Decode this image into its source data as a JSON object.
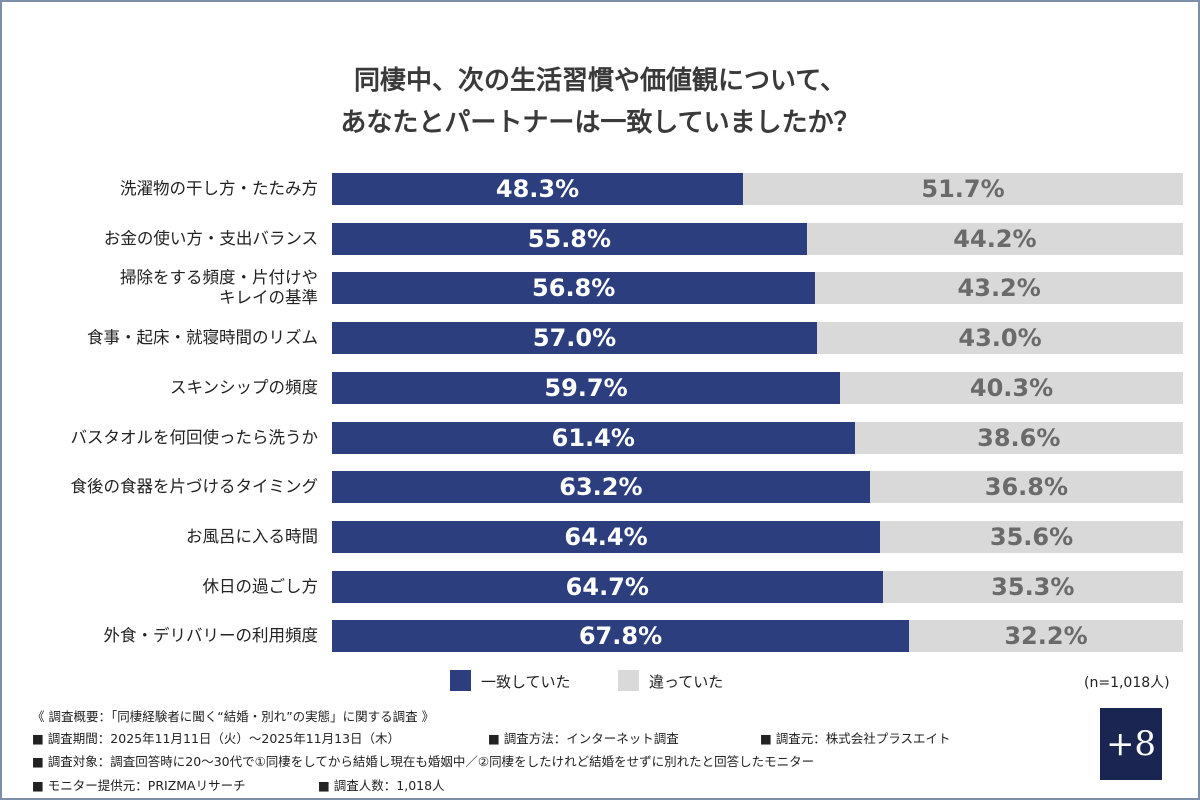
{
  "chart_data": {
    "type": "stacked-bar-horizontal",
    "title": [
      "同棲中、次の生活習慣や価値観について、",
      "あなたとパートナーは一致していましたか？"
    ],
    "categories": [
      "洗濯物の干し方・たたみ方",
      "お金の使い方・支出バランス",
      "掃除をする頻度・片付けや\nキレイの基準",
      "食事・起床・就寝時間のリズム",
      "スキンシップの頻度",
      "バスタオルを何回使ったら洗うか",
      "食後の食器を片づけるタイミング",
      "お風呂に入る時間",
      "休日の過ごし方",
      "外食・デリバリーの利用頻度"
    ],
    "xlim": [
      0,
      100
    ],
    "series": [
      {
        "name": "一致していた",
        "color": "#2c3e7e",
        "values": [
          48.3,
          55.8,
          56.8,
          57.0,
          59.7,
          61.4,
          63.2,
          64.4,
          64.7,
          67.8
        ],
        "value_labels": [
          "48.3%",
          "55.8%",
          "56.8%",
          "57.0%",
          "59.7%",
          "61.4%",
          "63.2%",
          "64.4%",
          "64.7%",
          "67.8%"
        ]
      },
      {
        "name": "違っていた",
        "color": "#d9d9d9",
        "values": [
          51.7,
          44.2,
          43.2,
          43.0,
          40.3,
          38.6,
          36.8,
          35.6,
          35.3,
          32.2
        ],
        "value_labels": [
          "51.7%",
          "44.2%",
          "43.2%",
          "43.0%",
          "40.3%",
          "38.6%",
          "36.8%",
          "35.6%",
          "35.3%",
          "32.2%"
        ]
      }
    ],
    "sample_note": "(n=1,018人)"
  },
  "footnote": {
    "heading": "《 調査概要：「同棲経験者に聞く“結婚・別れ”の実態」に関する調査 》",
    "lines": [
      [
        "■ 調査期間：2025年11月11日（火）～2025年11月13日（木）",
        "■ 調査方法：インターネット調査",
        "■ 調査元：株式会社プラスエイト"
      ],
      [
        "■ 調査対象：調査回答時に20～30代で①同棲をしてから結婚し現在も婚姻中／②同棲をしたけれど結婚をせずに別れたと回答したモニター"
      ],
      [
        "■ モニター提供元：PRIZMAリサーチ",
        "■ 調査人数：1,018人"
      ]
    ]
  },
  "logo": "+8"
}
